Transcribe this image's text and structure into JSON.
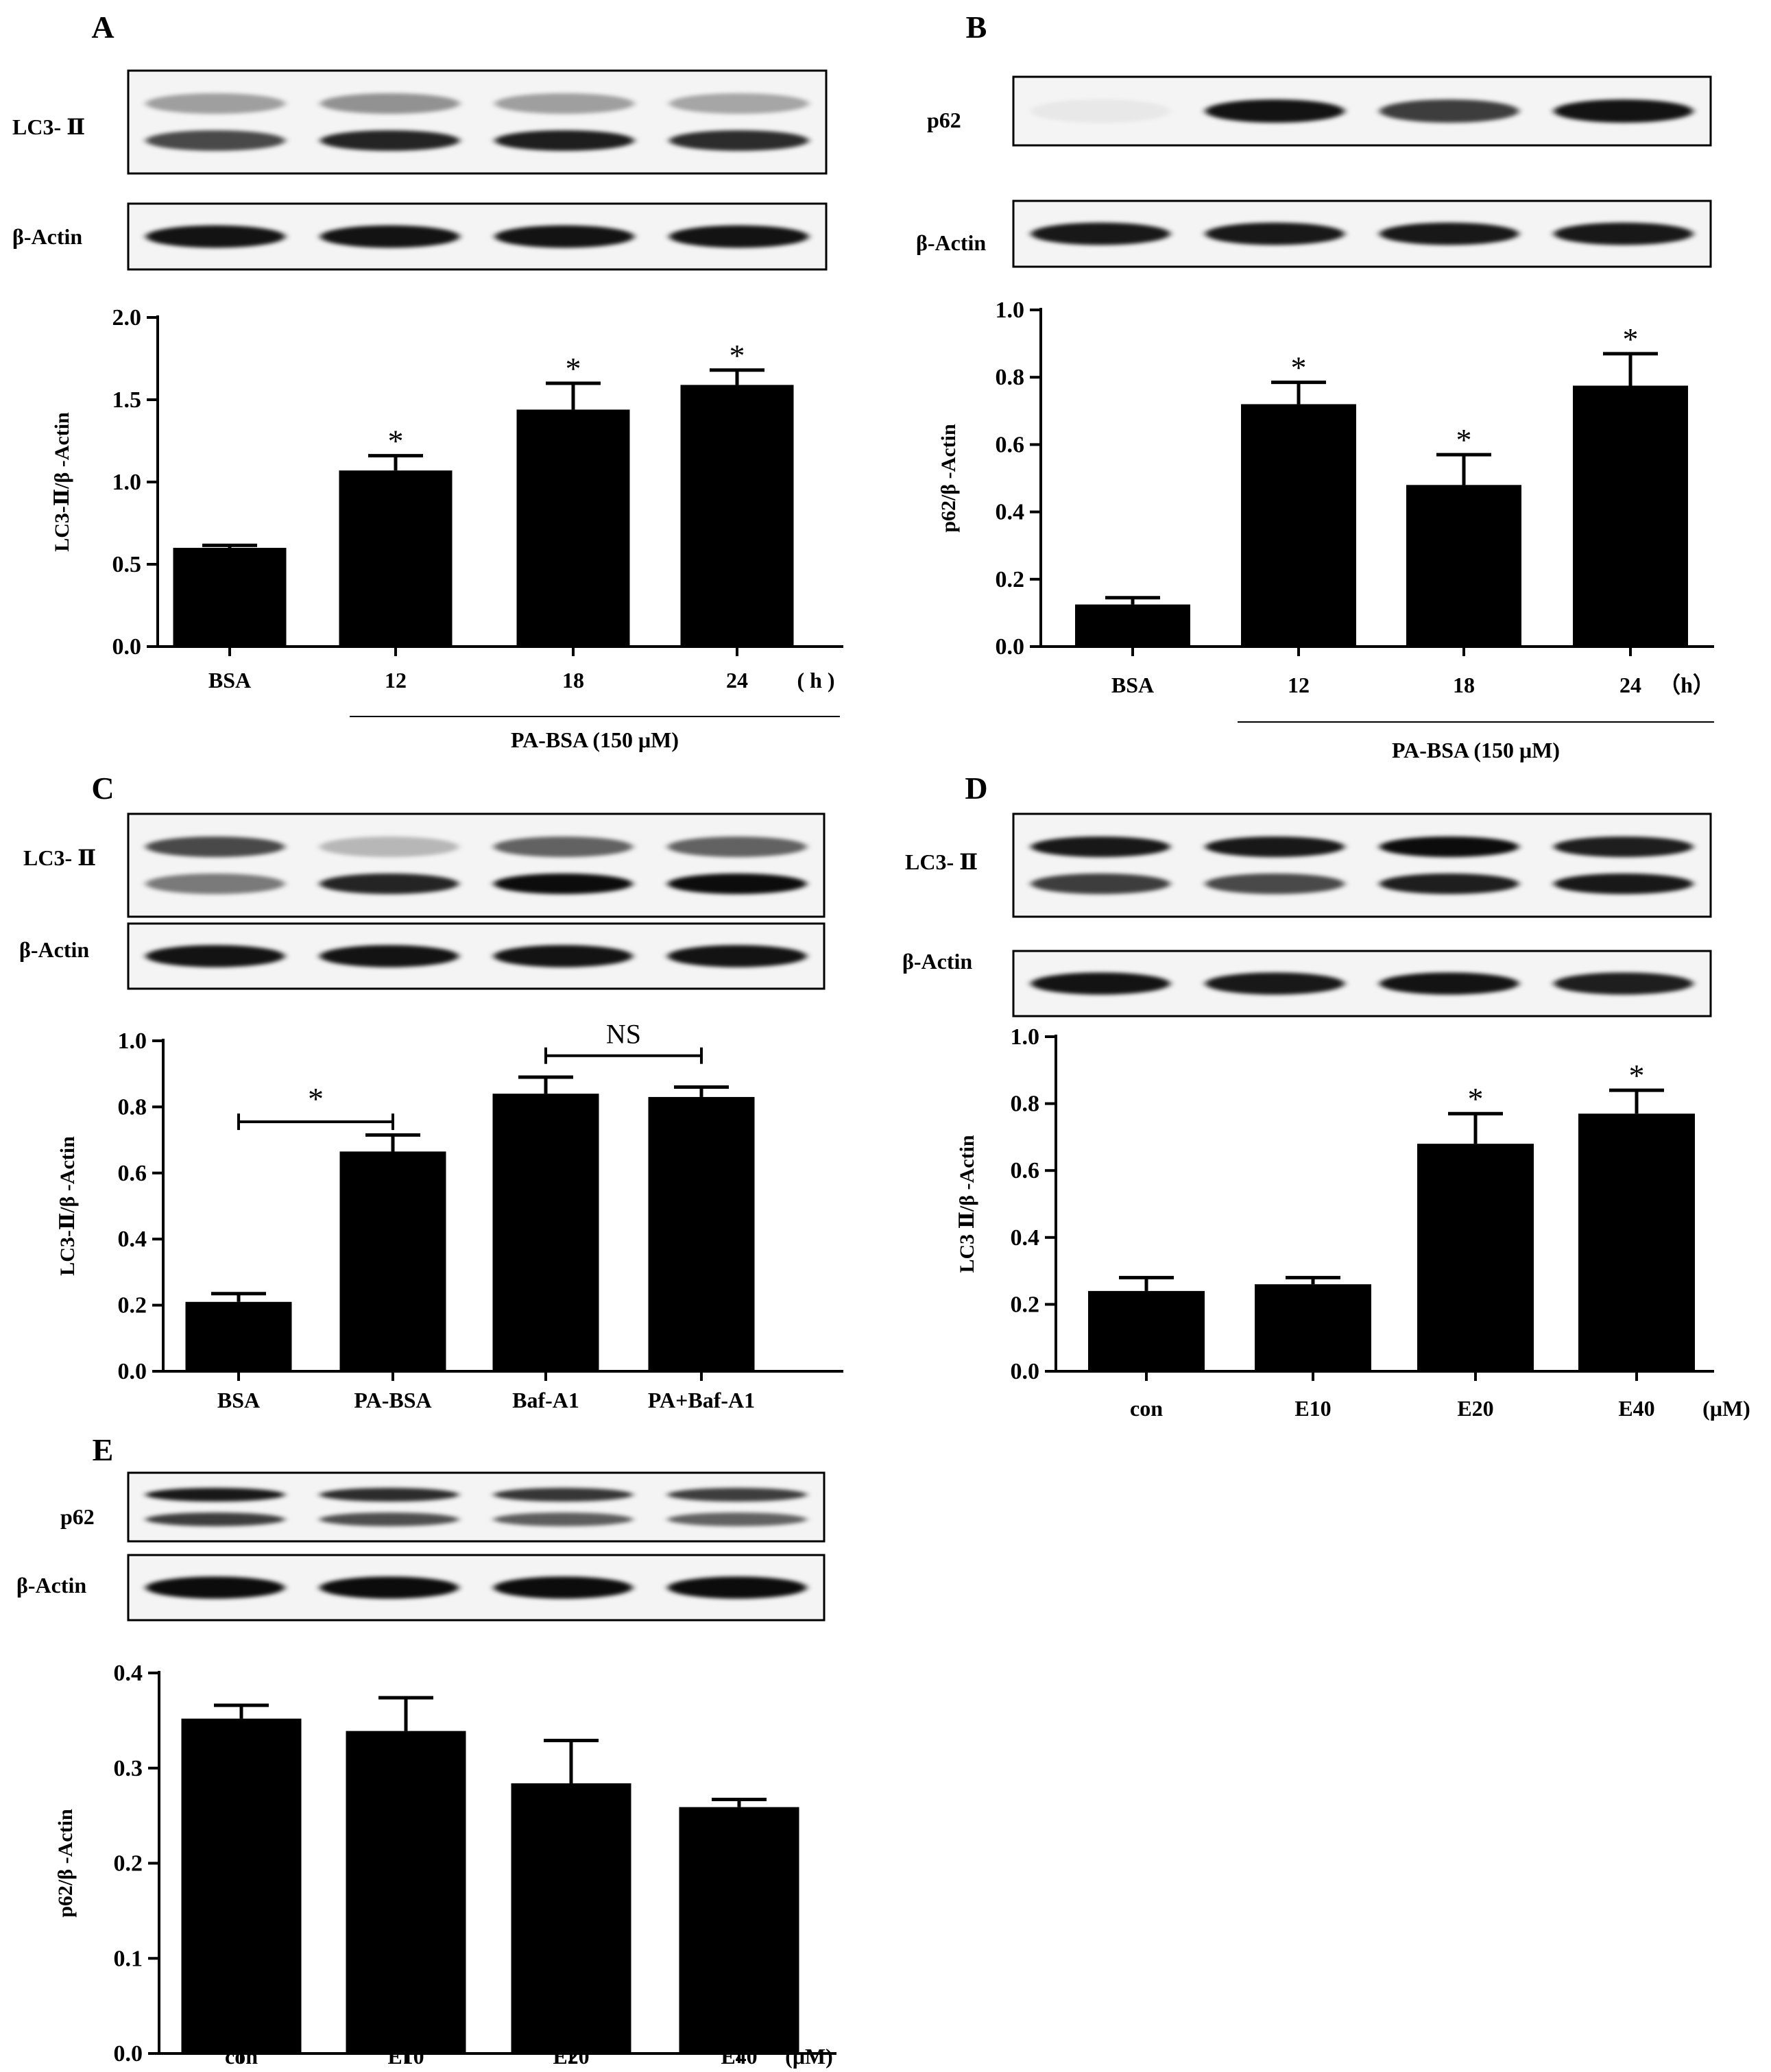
{
  "panels": [
    {
      "letter": "A",
      "blots": [
        {
          "label": "LC3- Ⅱ",
          "lanes": [
            [
              0.35,
              0.7
            ],
            [
              0.4,
              0.85
            ],
            [
              0.35,
              0.88
            ],
            [
              0.32,
              0.82
            ]
          ]
        },
        {
          "label": "β-Actin",
          "lanes": [
            [
              0.92
            ],
            [
              0.92
            ],
            [
              0.92
            ],
            [
              0.92
            ]
          ]
        }
      ],
      "chart_data": {
        "type": "bar",
        "categories": [
          "BSA",
          "12",
          "18",
          "24"
        ],
        "unit": "( h )",
        "values": [
          0.6,
          1.07,
          1.44,
          1.59
        ],
        "errors": [
          0.015,
          0.09,
          0.16,
          0.09
        ],
        "ylabel": "LC3-Ⅱ/β -Actin",
        "ylim": [
          0,
          2.0
        ],
        "yticks": [
          "0.0",
          "0.5",
          "1.0",
          "1.5",
          "2.0"
        ],
        "ytick_values": [
          0,
          0.5,
          1.0,
          1.5,
          2.0
        ],
        "group_label": "PA-BSA (150 μM)",
        "stars": [
          "",
          "*",
          "*",
          "*"
        ]
      }
    },
    {
      "letter": "B",
      "blots": [
        {
          "label": "p62",
          "lanes": [
            [
              0.05
            ],
            [
              0.92
            ],
            [
              0.75
            ],
            [
              0.92
            ]
          ]
        },
        {
          "label": "β-Actin",
          "lanes": [
            [
              0.9
            ],
            [
              0.9
            ],
            [
              0.9
            ],
            [
              0.9
            ]
          ]
        }
      ],
      "chart_data": {
        "type": "bar",
        "categories": [
          "BSA",
          "12",
          "18",
          "24"
        ],
        "unit": "（h）",
        "values": [
          0.125,
          0.72,
          0.48,
          0.775
        ],
        "errors": [
          0.02,
          0.065,
          0.09,
          0.095
        ],
        "ylabel": "p62/β -Actin",
        "ylim": [
          0,
          1.0
        ],
        "yticks": [
          "0.0",
          "0.2",
          "0.4",
          "0.6",
          "0.8",
          "1.0"
        ],
        "ytick_values": [
          0,
          0.2,
          0.4,
          0.6,
          0.8,
          1.0
        ],
        "group_label": "PA-BSA (150 μM)",
        "stars": [
          "",
          "*",
          "*",
          "*"
        ]
      }
    },
    {
      "letter": "C",
      "blots": [
        {
          "label": "LC3- Ⅱ",
          "lanes": [
            [
              0.7,
              0.5
            ],
            [
              0.25,
              0.85
            ],
            [
              0.6,
              0.95
            ],
            [
              0.6,
              0.95
            ]
          ]
        },
        {
          "label": "β-Actin",
          "lanes": [
            [
              0.92
            ],
            [
              0.92
            ],
            [
              0.92
            ],
            [
              0.92
            ]
          ]
        }
      ],
      "chart_data": {
        "type": "bar",
        "categories": [
          "BSA",
          "PA-BSA",
          "Baf-A1",
          "PA+Baf-A1"
        ],
        "unit": "",
        "values": [
          0.21,
          0.665,
          0.84,
          0.83
        ],
        "errors": [
          0.025,
          0.05,
          0.05,
          0.03
        ],
        "ylabel": "LC3-Ⅱ/β -Actin",
        "ylim": [
          0,
          1.0
        ],
        "yticks": [
          "0.0",
          "0.2",
          "0.4",
          "0.6",
          "0.8",
          "1.0"
        ],
        "ytick_values": [
          0,
          0.2,
          0.4,
          0.6,
          0.8,
          1.0
        ],
        "group_label": "",
        "stars": [
          "",
          "",
          "",
          ""
        ],
        "brackets": [
          {
            "from": 0,
            "to": 1,
            "y": 0.755,
            "label": "*"
          },
          {
            "from": 2,
            "to": 3,
            "y": 0.955,
            "label": "NS"
          }
        ]
      }
    },
    {
      "letter": "D",
      "blots": [
        {
          "label": "LC3- Ⅱ",
          "lanes": [
            [
              0.9,
              0.75
            ],
            [
              0.9,
              0.7
            ],
            [
              0.95,
              0.88
            ],
            [
              0.88,
              0.9
            ]
          ]
        },
        {
          "label": "β-Actin",
          "lanes": [
            [
              0.92
            ],
            [
              0.9
            ],
            [
              0.92
            ],
            [
              0.88
            ]
          ]
        }
      ],
      "chart_data": {
        "type": "bar",
        "categories": [
          "con",
          "E10",
          "E20",
          "E40"
        ],
        "unit": "(μM)",
        "values": [
          0.24,
          0.26,
          0.68,
          0.77
        ],
        "errors": [
          0.04,
          0.02,
          0.09,
          0.07
        ],
        "ylabel": "LC3 Ⅱ/β -Actin",
        "ylim": [
          0,
          1.0
        ],
        "yticks": [
          "0.0",
          "0.2",
          "0.4",
          "0.6",
          "0.8",
          "1.0"
        ],
        "ytick_values": [
          0,
          0.2,
          0.4,
          0.6,
          0.8,
          1.0
        ],
        "group_label": "",
        "stars": [
          "",
          "",
          "*",
          "*"
        ]
      }
    },
    {
      "letter": "E",
      "blots": [
        {
          "label": "p62",
          "lanes": [
            [
              0.9,
              0.75
            ],
            [
              0.82,
              0.68
            ],
            [
              0.78,
              0.62
            ],
            [
              0.75,
              0.6
            ]
          ]
        },
        {
          "label": "β-Actin",
          "lanes": [
            [
              0.95
            ],
            [
              0.95
            ],
            [
              0.95
            ],
            [
              0.95
            ]
          ]
        }
      ],
      "chart_data": {
        "type": "bar",
        "categories": [
          "con",
          "E10",
          "E20",
          "E40"
        ],
        "unit": "(μM)",
        "values": [
          0.352,
          0.339,
          0.284,
          0.259
        ],
        "errors": [
          0.014,
          0.035,
          0.045,
          0.008
        ],
        "ylabel": "p62/β -Actin",
        "ylim": [
          0,
          0.4
        ],
        "yticks": [
          "0.0",
          "0.1",
          "0.2",
          "0.3",
          "0.4"
        ],
        "ytick_values": [
          0,
          0.1,
          0.2,
          0.3,
          0.4
        ],
        "group_label": "",
        "stars": [
          "",
          "",
          "",
          ""
        ]
      }
    }
  ]
}
